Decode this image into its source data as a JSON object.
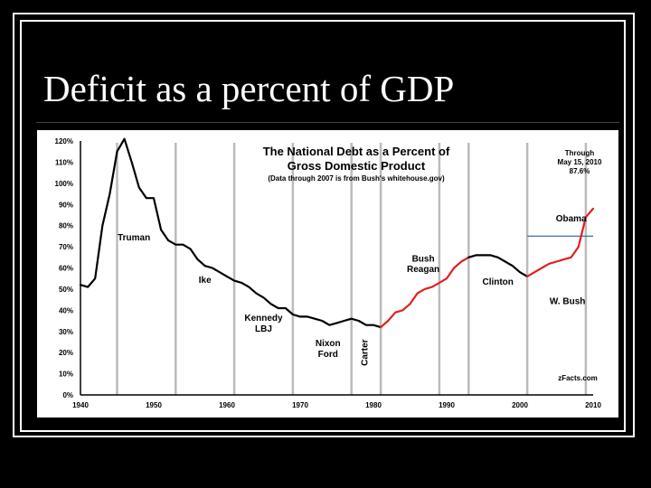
{
  "slide": {
    "title": "Deficit as a percent of GDP"
  },
  "chart_data": {
    "type": "line",
    "title": "The National Debt as a Percent of",
    "title_line2": "Gross Domestic Product",
    "subtitle": "(Data through 2007 is from Bush's whitehouse.gov)",
    "annotation_lines": [
      "Through",
      "May 15, 2010",
      "87.6%"
    ],
    "source": "zFacts.com",
    "xlabel": "",
    "ylabel": "",
    "xlim": [
      1940,
      2010
    ],
    "ylim": [
      0,
      120
    ],
    "x_ticks": [
      "1940",
      "1950",
      "1960",
      "1970",
      "1980",
      "1990",
      "2000",
      "2010"
    ],
    "y_ticks": [
      "0%",
      "10%",
      "20%",
      "30%",
      "40%",
      "50%",
      "60%",
      "70%",
      "80%",
      "90%",
      "100%",
      "110%",
      "120%"
    ],
    "grid": false,
    "colors": {
      "democrat_era": "#000000",
      "republican_era": "#e0201e",
      "reference_line": "#4a7fb0",
      "separator": "#bbbbbb"
    },
    "series": [
      {
        "color": "#000000",
        "points": [
          [
            1940,
            52
          ],
          [
            1941,
            51
          ],
          [
            1942,
            55
          ],
          [
            1943,
            80
          ],
          [
            1944,
            95
          ],
          [
            1945,
            115
          ],
          [
            1946,
            121
          ],
          [
            1947,
            110
          ],
          [
            1948,
            98
          ],
          [
            1949,
            93
          ],
          [
            1950,
            93
          ],
          [
            1951,
            78
          ],
          [
            1952,
            73
          ],
          [
            1953,
            71
          ],
          [
            1954,
            71
          ],
          [
            1955,
            69
          ],
          [
            1956,
            64
          ],
          [
            1957,
            61
          ],
          [
            1958,
            60
          ],
          [
            1959,
            58
          ],
          [
            1960,
            56
          ],
          [
            1961,
            54
          ],
          [
            1962,
            53
          ],
          [
            1963,
            51
          ],
          [
            1964,
            48
          ],
          [
            1965,
            46
          ],
          [
            1966,
            43
          ],
          [
            1967,
            41
          ],
          [
            1968,
            41
          ],
          [
            1969,
            38
          ],
          [
            1970,
            37
          ],
          [
            1971,
            37
          ],
          [
            1972,
            36
          ],
          [
            1973,
            35
          ],
          [
            1974,
            33
          ],
          [
            1975,
            34
          ],
          [
            1976,
            35
          ],
          [
            1977,
            36
          ],
          [
            1978,
            35
          ],
          [
            1979,
            33
          ],
          [
            1980,
            33
          ],
          [
            1981,
            32
          ]
        ]
      },
      {
        "color": "#e0201e",
        "points": [
          [
            1981,
            32
          ],
          [
            1982,
            35
          ],
          [
            1983,
            39
          ],
          [
            1984,
            40
          ],
          [
            1985,
            43
          ],
          [
            1986,
            48
          ],
          [
            1987,
            50
          ],
          [
            1988,
            51
          ],
          [
            1989,
            53
          ],
          [
            1990,
            55
          ],
          [
            1991,
            60
          ],
          [
            1992,
            63
          ],
          [
            1993,
            65
          ]
        ]
      },
      {
        "color": "#000000",
        "points": [
          [
            1993,
            65
          ],
          [
            1994,
            66
          ],
          [
            1995,
            66
          ],
          [
            1996,
            66
          ],
          [
            1997,
            65
          ],
          [
            1998,
            63
          ],
          [
            1999,
            61
          ],
          [
            2000,
            58
          ],
          [
            2001,
            56
          ]
        ]
      },
      {
        "color": "#e0201e",
        "points": [
          [
            2001,
            56
          ],
          [
            2002,
            58
          ],
          [
            2003,
            60
          ],
          [
            2004,
            62
          ],
          [
            2005,
            63
          ],
          [
            2006,
            64
          ],
          [
            2007,
            65
          ],
          [
            2008,
            70
          ],
          [
            2009,
            84
          ]
        ]
      },
      {
        "color": "#e0201e",
        "points": [
          [
            2009,
            84
          ],
          [
            2010,
            88
          ]
        ]
      }
    ],
    "reference_line": {
      "y": 75,
      "x_start": 2001,
      "x_end": 2010
    },
    "term_separators": [
      1945,
      1953,
      1961,
      1969,
      1977,
      1981,
      1989,
      1993,
      2001,
      2009
    ],
    "era_labels": [
      {
        "text": "Truman",
        "x": 1947.3,
        "y": 73
      },
      {
        "text": "Ike",
        "x": 1957,
        "y": 53
      },
      {
        "text": "Kennedy",
        "x": 1965,
        "y": 35
      },
      {
        "text": "LBJ",
        "x": 1965,
        "y": 30
      },
      {
        "text": "Nixon",
        "x": 1973.8,
        "y": 23
      },
      {
        "text": "Ford",
        "x": 1973.8,
        "y": 18
      },
      {
        "text": "Bush",
        "x": 1986.8,
        "y": 63
      },
      {
        "text": "Reagan",
        "x": 1986.8,
        "y": 58
      },
      {
        "text": "Clinton",
        "x": 1997,
        "y": 52
      },
      {
        "text": "Obama",
        "x": 2007,
        "y": 82
      },
      {
        "text": "W. Bush",
        "x": 2006.5,
        "y": 43
      }
    ],
    "vertical_label": {
      "text": "Carter",
      "x": 1979.2,
      "y": 20
    }
  }
}
